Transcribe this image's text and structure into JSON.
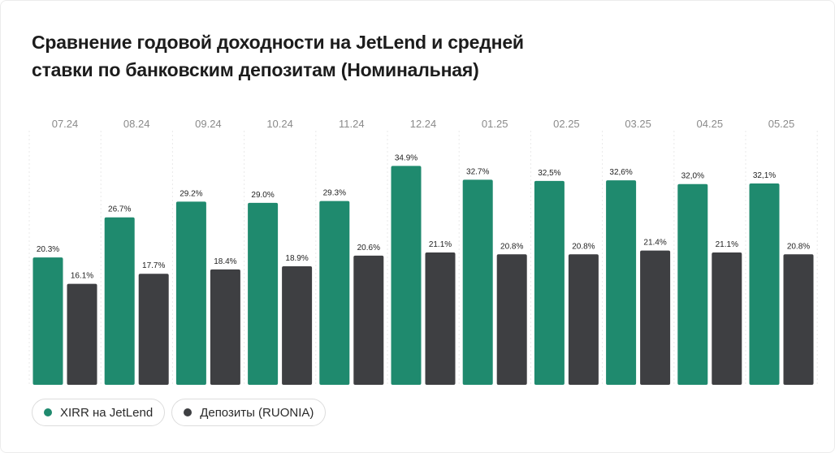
{
  "chart_data": {
    "type": "bar",
    "title": "Сравнение годовой доходности на JetLend и средней ставки по банковским депозитам (Номинальная)",
    "categories": [
      "07.24",
      "08.24",
      "09.24",
      "10.24",
      "11.24",
      "12.24",
      "01.25",
      "02.25",
      "03.25",
      "04.25",
      "05.25"
    ],
    "series": [
      {
        "name": "XIRR на JetLend",
        "color": "#1f8a6e",
        "values": [
          20.3,
          26.7,
          29.2,
          29.0,
          29.3,
          34.9,
          32.7,
          32.5,
          32.6,
          32.0,
          32.1
        ],
        "labels": [
          "20.3%",
          "26.7%",
          "29.2%",
          "29.0%",
          "29.3%",
          "34.9%",
          "32.7%",
          "32,5%",
          "32,6%",
          "32,0%",
          "32,1%"
        ]
      },
      {
        "name": "Депозиты (RUONIA)",
        "color": "#3e3f42",
        "values": [
          16.1,
          17.7,
          18.4,
          18.9,
          20.6,
          21.1,
          20.8,
          20.8,
          21.4,
          21.1,
          20.8
        ],
        "labels": [
          "16.1%",
          "17.7%",
          "18.4%",
          "18.9%",
          "20.6%",
          "21.1%",
          "20.8%",
          "20.8%",
          "21.4%",
          "21.1%",
          "20.8%"
        ]
      }
    ],
    "legend_position": "bottom-left",
    "grid": false
  },
  "colors": {
    "jetlend": "#1f8a6e",
    "deposits": "#3e3f42",
    "tick_label": "#8a8a8a"
  }
}
